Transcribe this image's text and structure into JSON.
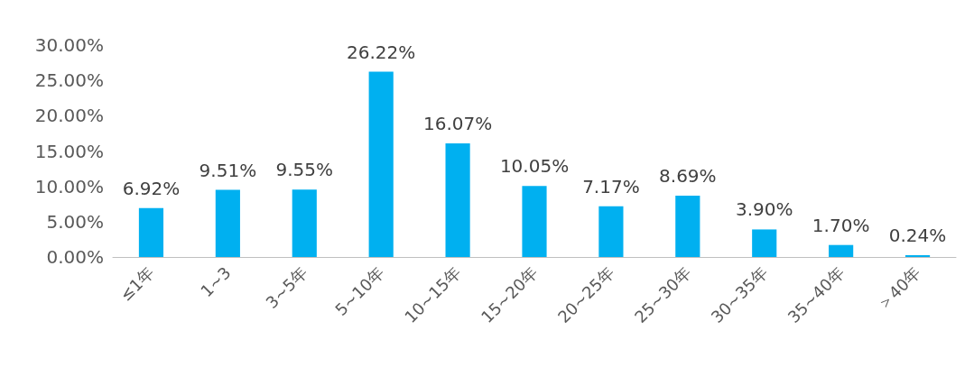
{
  "chart_data": {
    "type": "bar",
    "categories": [
      "≤1年",
      "1~3",
      "3~5年",
      "5~10年",
      "10~15年",
      "15~20年",
      "20~25年",
      "25~30年",
      "30~35年",
      "35~40年",
      "＞40年"
    ],
    "values": [
      6.92,
      9.51,
      9.55,
      26.22,
      16.07,
      10.05,
      7.17,
      8.69,
      3.9,
      1.7,
      0.24
    ],
    "value_labels": [
      "6.92%",
      "9.51%",
      "9.55%",
      "26.22%",
      "16.07%",
      "10.05%",
      "7.17%",
      "8.69%",
      "3.90%",
      "1.70%",
      "0.24%"
    ],
    "color": "#00b0f0",
    "ylim": [
      0,
      30
    ],
    "yticks": [
      {
        "value": 0,
        "label": "0.00%"
      },
      {
        "value": 5,
        "label": "5.00%"
      },
      {
        "value": 10,
        "label": "10.00%"
      },
      {
        "value": 15,
        "label": "15.00%"
      },
      {
        "value": 20,
        "label": "20.00%"
      },
      {
        "value": 25,
        "label": "25.00%"
      },
      {
        "value": 30,
        "label": "30.00%"
      }
    ],
    "grid": false
  }
}
